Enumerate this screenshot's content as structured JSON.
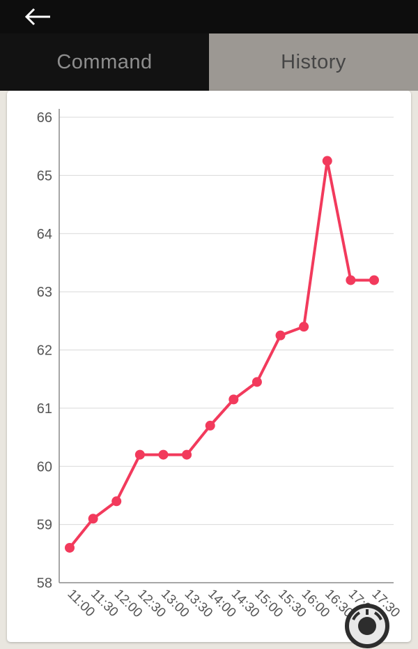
{
  "header": {
    "back_icon": "left-arrow"
  },
  "tabs": [
    {
      "label": "Command",
      "active": false
    },
    {
      "label": "History",
      "active": true
    }
  ],
  "colors": {
    "line": "#f23a5c",
    "grid": "#d9d9d9",
    "axis": "#8a8a8a",
    "tick_label": "#555555",
    "header_bg": "#0d0d0d",
    "history_tab_bg": "#9c9893",
    "page_bg": "#e9e6df",
    "card_bg": "#ffffff"
  },
  "chart_data": {
    "type": "line",
    "title": "",
    "xlabel": "",
    "ylabel": "",
    "categories": [
      "11:00",
      "11:30",
      "12:00",
      "12:30",
      "13:00",
      "13:30",
      "14:00",
      "14:30",
      "15:00",
      "15:30",
      "16:00",
      "16:30",
      "17:00",
      "17:30"
    ],
    "values": [
      58.6,
      59.1,
      59.4,
      60.2,
      60.2,
      60.2,
      60.7,
      61.15,
      61.45,
      62.25,
      62.4,
      65.25,
      63.2,
      63.2
    ],
    "ylim": [
      58,
      66
    ],
    "yticks": [
      58,
      59,
      60,
      61,
      62,
      63,
      64,
      65,
      66
    ],
    "grid": "horizontal",
    "legend": "none",
    "marker": "circle",
    "line_color": "#f23a5c",
    "x_label_rotation": 45
  }
}
